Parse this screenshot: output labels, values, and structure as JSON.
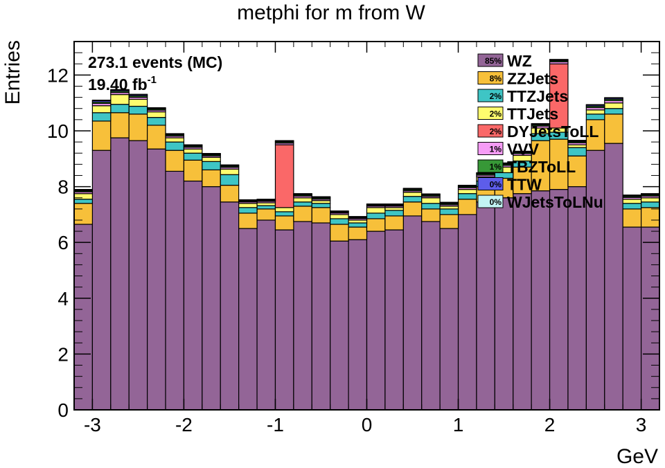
{
  "chart_data": {
    "type": "bar",
    "stacked": true,
    "title": "metphi for m from W",
    "xlabel": "GeV",
    "ylabel": "Entries",
    "info": {
      "events": "273.1 events (MC)",
      "lumi_value": "19.40 fb",
      "lumi_exp": "-1"
    },
    "xlim": [
      -3.2,
      3.2
    ],
    "ylim": [
      0,
      13.2
    ],
    "x_ticks": [
      -3,
      -2,
      -1,
      0,
      1,
      2,
      3
    ],
    "x_tick_labels": [
      "-3",
      "-2",
      "-1",
      "0",
      "1",
      "2",
      "3"
    ],
    "y_ticks": [
      0,
      2,
      4,
      6,
      8,
      10,
      12
    ],
    "y_tick_labels": [
      "0",
      "2",
      "4",
      "6",
      "8",
      "10",
      "12"
    ],
    "bin_edges": [
      -3.2,
      -3.0,
      -2.8,
      -2.6,
      -2.4,
      -2.2,
      -2.0,
      -1.8,
      -1.6,
      -1.4,
      -1.2,
      -1.0,
      -0.8,
      -0.6,
      -0.4,
      -0.2,
      0.0,
      0.2,
      0.4,
      0.6,
      0.8,
      1.0,
      1.2,
      1.4,
      1.6,
      1.8,
      2.0,
      2.2,
      2.4,
      2.6,
      2.8,
      3.0,
      3.2
    ],
    "series": [
      {
        "name": "WZ",
        "pct": "85%",
        "color": "#936597",
        "values": [
          6.65,
          9.3,
          9.75,
          9.65,
          9.35,
          8.55,
          8.2,
          8.0,
          7.45,
          6.5,
          6.8,
          6.45,
          6.75,
          6.7,
          6.05,
          6.1,
          6.4,
          6.45,
          6.95,
          6.75,
          6.5,
          7.0,
          7.45,
          7.6,
          7.75,
          7.85,
          7.9,
          8.0,
          9.3,
          9.55,
          6.55,
          6.55
        ]
      },
      {
        "name": "ZZJets",
        "pct": "8%",
        "color": "#f7c03a",
        "values": [
          0.75,
          1.05,
          0.9,
          0.95,
          0.85,
          0.75,
          0.75,
          0.6,
          0.6,
          0.55,
          0.4,
          0.5,
          0.55,
          0.55,
          0.6,
          0.45,
          0.45,
          0.5,
          0.5,
          0.45,
          0.5,
          0.55,
          0.55,
          0.7,
          0.95,
          1.8,
          1.8,
          1.1,
          1.1,
          1.05,
          0.65,
          0.7
        ]
      },
      {
        "name": "TTZJets",
        "pct": "2%",
        "color": "#3ec5c5",
        "values": [
          0.15,
          0.3,
          0.3,
          0.28,
          0.28,
          0.3,
          0.25,
          0.3,
          0.38,
          0.2,
          0.12,
          0.15,
          0.15,
          0.15,
          0.2,
          0.15,
          0.2,
          0.2,
          0.2,
          0.2,
          0.2,
          0.2,
          0.2,
          0.2,
          0.22,
          0.25,
          0.25,
          0.3,
          0.2,
          0.2,
          0.2,
          0.2
        ]
      },
      {
        "name": "TTJets",
        "pct": "2%",
        "color": "#fffc6e",
        "values": [
          0.2,
          0.25,
          0.35,
          0.25,
          0.2,
          0.15,
          0.15,
          0.15,
          0.2,
          0.15,
          0.1,
          0.15,
          0.15,
          0.1,
          0.15,
          0.1,
          0.2,
          0.1,
          0.15,
          0.2,
          0.1,
          0.15,
          0.15,
          0.2,
          0.2,
          0.2,
          0.15,
          0.1,
          0.15,
          0.2,
          0.15,
          0.15
        ]
      },
      {
        "name": "DYJetsToLL",
        "pct": "2%",
        "color": "#fa6868",
        "values": [
          0.0,
          0.0,
          0.0,
          0.0,
          0.0,
          0.0,
          0.0,
          0.0,
          0.0,
          0.0,
          0.0,
          2.25,
          0.0,
          0.0,
          0.0,
          0.0,
          0.0,
          0.0,
          0.0,
          0.0,
          0.0,
          0.0,
          0.0,
          0.0,
          0.0,
          0.0,
          2.3,
          0.0,
          0.0,
          0.0,
          0.0,
          0.0
        ]
      },
      {
        "name": "VVV",
        "pct": "1%",
        "color": "#f69cf6",
        "values": [
          0.06,
          0.08,
          0.07,
          0.07,
          0.06,
          0.06,
          0.06,
          0.05,
          0.06,
          0.05,
          0.05,
          0.06,
          0.06,
          0.05,
          0.05,
          0.05,
          0.05,
          0.05,
          0.05,
          0.05,
          0.05,
          0.06,
          0.06,
          0.06,
          0.06,
          0.07,
          0.07,
          0.07,
          0.08,
          0.08,
          0.06,
          0.06
        ]
      },
      {
        "name": "TBZToLL",
        "pct": "1%",
        "color": "#379837",
        "values": [
          0.04,
          0.05,
          0.05,
          0.05,
          0.04,
          0.04,
          0.04,
          0.04,
          0.04,
          0.03,
          0.03,
          0.04,
          0.04,
          0.04,
          0.03,
          0.03,
          0.03,
          0.03,
          0.04,
          0.04,
          0.04,
          0.04,
          0.04,
          0.04,
          0.04,
          0.04,
          0.04,
          0.04,
          0.05,
          0.05,
          0.04,
          0.04
        ]
      },
      {
        "name": "TTW",
        "pct": "0%",
        "color": "#5d5dea",
        "values": [
          0.03,
          0.05,
          0.04,
          0.04,
          0.03,
          0.03,
          0.03,
          0.03,
          0.03,
          0.03,
          0.03,
          0.03,
          0.03,
          0.03,
          0.03,
          0.03,
          0.03,
          0.03,
          0.03,
          0.03,
          0.03,
          0.03,
          0.03,
          0.03,
          0.03,
          0.03,
          0.03,
          0.03,
          0.04,
          0.04,
          0.03,
          0.03
        ]
      },
      {
        "name": "WJetsToLNu",
        "pct": "0%",
        "color": "#c2f4f4",
        "values": [
          0.02,
          0.02,
          0.02,
          0.02,
          0.02,
          0.02,
          0.02,
          0.02,
          0.02,
          0.02,
          0.02,
          0.02,
          0.02,
          0.02,
          0.02,
          0.02,
          0.02,
          0.02,
          0.02,
          0.02,
          0.02,
          0.02,
          0.02,
          0.02,
          0.02,
          0.02,
          0.02,
          0.02,
          0.02,
          0.02,
          0.02,
          0.02
        ]
      }
    ],
    "legend_position": "top-right",
    "grid": false
  }
}
